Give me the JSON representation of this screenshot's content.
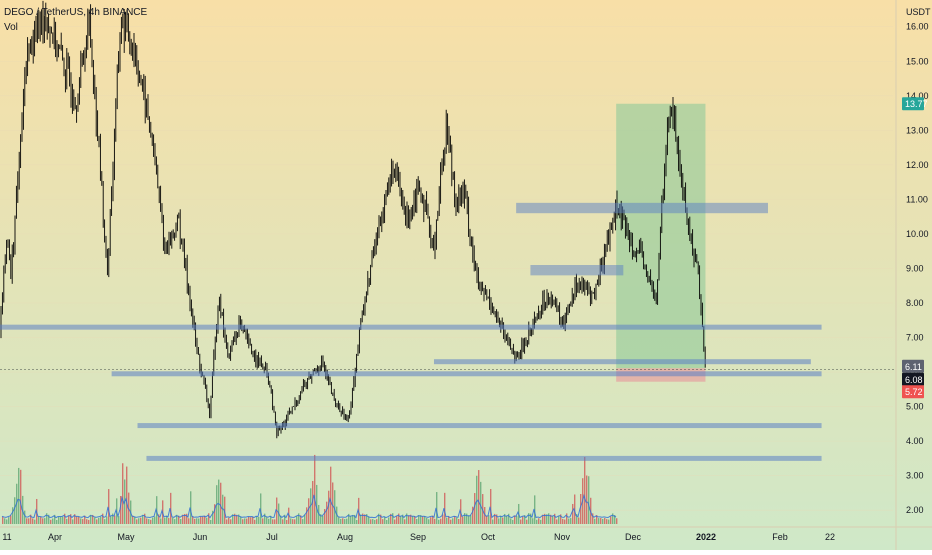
{
  "header": {
    "symbol_line": "DEGO / TetherUS, 4h BINANCE",
    "indicator": "Vol"
  },
  "colors": {
    "bg_top": "#f8dfa7",
    "bg_bottom": "#cfe8c8",
    "candle": "#000000",
    "zone": "#5b7fc4",
    "target_zone": "#8fc99a",
    "stop_zone": "#e6a0a0",
    "vol_up": "#5aa36f",
    "vol_down": "#d05050",
    "vol_ma": "#2f6fd6",
    "badge_current": "#131722",
    "badge_target": "#26a69a",
    "badge_stop": "#ef5350",
    "badge_entry": "#5d6270"
  },
  "chart_data": {
    "type": "candlestick",
    "symbol": "DEGO / TetherUS",
    "interval": "4h",
    "exchange": "BINANCE",
    "currency_label": "USDT",
    "y_ticks": [
      16.0,
      15.0,
      14.0,
      13.0,
      12.0,
      11.0,
      10.0,
      9.0,
      8.0,
      7.0,
      6.0,
      5.0,
      4.0,
      3.0,
      2.0
    ],
    "ylim": [
      1.6,
      16.6
    ],
    "x_ticks": [
      "11",
      "Apr",
      "May",
      "Jun",
      "Jul",
      "Aug",
      "Sep",
      "Oct",
      "Nov",
      "Dec",
      "2022",
      "Feb",
      "22"
    ],
    "price_path": [
      [
        0.0,
        7.2
      ],
      [
        0.008,
        10.2
      ],
      [
        0.012,
        8.7
      ],
      [
        0.03,
        15.2
      ],
      [
        0.05,
        16.4
      ],
      [
        0.07,
        15.0
      ],
      [
        0.085,
        13.8
      ],
      [
        0.1,
        16.2
      ],
      [
        0.112,
        12.0
      ],
      [
        0.12,
        8.8
      ],
      [
        0.135,
        16.2
      ],
      [
        0.15,
        15.4
      ],
      [
        0.17,
        12.8
      ],
      [
        0.185,
        9.5
      ],
      [
        0.2,
        10.4
      ],
      [
        0.21,
        8.6
      ],
      [
        0.22,
        6.7
      ],
      [
        0.235,
        4.8
      ],
      [
        0.245,
        8.3
      ],
      [
        0.255,
        6.4
      ],
      [
        0.268,
        7.4
      ],
      [
        0.28,
        6.7
      ],
      [
        0.3,
        5.9
      ],
      [
        0.31,
        4.2
      ],
      [
        0.325,
        4.8
      ],
      [
        0.34,
        5.6
      ],
      [
        0.36,
        6.3
      ],
      [
        0.375,
        5.1
      ],
      [
        0.39,
        4.6
      ],
      [
        0.405,
        7.6
      ],
      [
        0.42,
        9.7
      ],
      [
        0.44,
        12.0
      ],
      [
        0.455,
        10.4
      ],
      [
        0.47,
        11.5
      ],
      [
        0.485,
        9.5
      ],
      [
        0.5,
        13.2
      ],
      [
        0.51,
        11.0
      ],
      [
        0.52,
        11.2
      ],
      [
        0.535,
        8.5
      ],
      [
        0.55,
        8.0
      ],
      [
        0.565,
        7.0
      ],
      [
        0.58,
        6.4
      ],
      [
        0.6,
        7.6
      ],
      [
        0.615,
        8.3
      ],
      [
        0.63,
        7.4
      ],
      [
        0.645,
        8.6
      ],
      [
        0.665,
        8.2
      ],
      [
        0.68,
        9.8
      ],
      [
        0.69,
        10.8
      ],
      [
        0.705,
        9.9
      ],
      [
        0.72,
        9.2
      ],
      [
        0.735,
        8.0
      ],
      [
        0.745,
        12.6
      ],
      [
        0.752,
        13.8
      ],
      [
        0.762,
        11.8
      ],
      [
        0.772,
        10.0
      ],
      [
        0.782,
        8.9
      ],
      [
        0.79,
        6.0
      ]
    ],
    "horizontal_levels": [
      {
        "price": 7.3,
        "x_start": 0.0,
        "x_end": 0.92
      },
      {
        "price": 6.3,
        "x_start": 0.486,
        "x_end": 0.908
      },
      {
        "price": 5.95,
        "x_start": 0.125,
        "x_end": 0.92
      },
      {
        "price": 4.45,
        "x_start": 0.154,
        "x_end": 0.92
      },
      {
        "price": 3.5,
        "x_start": 0.164,
        "x_end": 0.92
      }
    ],
    "zones": [
      {
        "price_low": 10.6,
        "price_high": 10.9,
        "x_start": 0.578,
        "x_end": 0.86
      },
      {
        "price_low": 8.8,
        "price_high": 9.1,
        "x_start": 0.594,
        "x_end": 0.698
      }
    ],
    "position": {
      "entry": 6.11,
      "target": 13.77,
      "stop": 5.72,
      "x_start": 0.69,
      "x_end": 0.79
    },
    "price_labels": [
      {
        "value": "13.77",
        "kind": "target"
      },
      {
        "value": "6.11",
        "kind": "entry"
      },
      {
        "value": "6.08",
        "kind": "current"
      },
      {
        "value": "5.72",
        "kind": "stop"
      }
    ],
    "volume": {
      "series_label": "Vol",
      "x_end": 0.692
    }
  }
}
